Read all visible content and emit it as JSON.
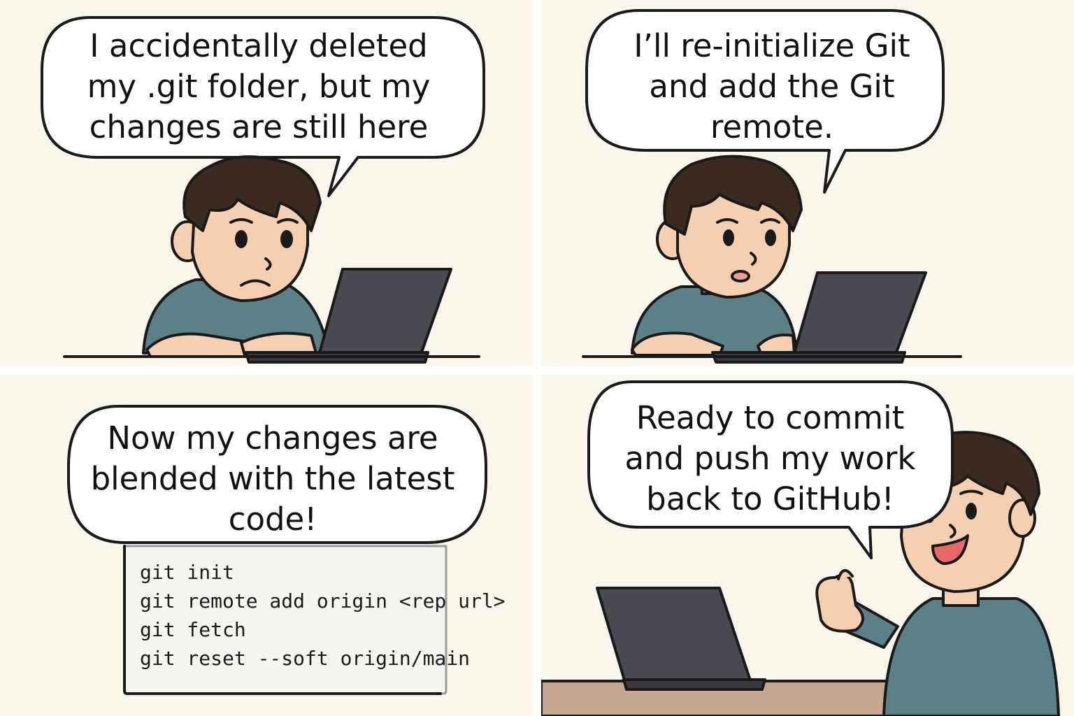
{
  "panels": [
    {
      "speech": [
        "I accidentally deleted",
        "my  .git folder, but my",
        "changes are still here"
      ]
    },
    {
      "speech": [
        "I’ll re-initialize Git",
        "and add the Git",
        "remote."
      ]
    },
    {
      "speech": [
        "Now my changes are",
        "blended with the latest",
        "code!"
      ],
      "commands": [
        "git init",
        "git remote add origin <rep url>",
        "git fetch",
        "git reset --soft origin/main"
      ]
    },
    {
      "speech": [
        "Ready to commit",
        "and push my work",
        "back to GitHub!"
      ]
    }
  ],
  "colors": {
    "panel_bg": "#fbf6ec",
    "shirt": "#5b8088",
    "skin": "#f6cfb0",
    "hair": "#3b2a20",
    "laptop": "#4a4b52",
    "outline": "#1a1a1a",
    "desk": "#c6a892"
  }
}
